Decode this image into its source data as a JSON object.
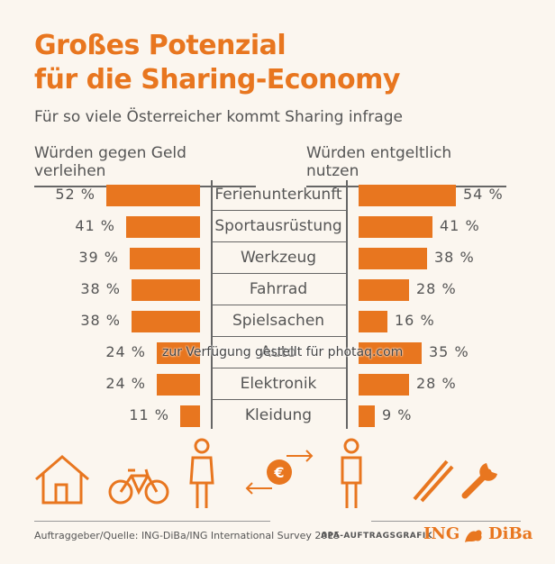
{
  "title_line1": "Großes Potenzial",
  "title_line2": "für die Sharing-Economy",
  "subtitle": "Für so viele Österreicher kommt Sharing infrage",
  "left_header": "Würden gegen Geld verleihen",
  "right_header": "Würden entgeltlich nutzen",
  "watermark": "zur Verfügung gestellt für photaq.com",
  "footer": "Auftraggeber/Quelle: ING-DiBa/ING International Survey 2015",
  "apa": "APA-AUFTRAGSGRAFIK",
  "logo": {
    "left": "ING",
    "right": "DiBa"
  },
  "accent_color": "#e8761f",
  "chart_data": {
    "type": "bar",
    "categories": [
      "Ferienunterkunft",
      "Sportausrüstung",
      "Werkzeug",
      "Fahrrad",
      "Spielsachen",
      "Auto",
      "Elektronik",
      "Kleidung"
    ],
    "series": [
      {
        "name": "Würden gegen Geld verleihen",
        "values": [
          52,
          41,
          39,
          38,
          38,
          24,
          24,
          11
        ],
        "labels": [
          "52 %",
          "41 %",
          "39 %",
          "38 %",
          "38 %",
          "24 %",
          "24 %",
          "11 %"
        ]
      },
      {
        "name": "Würden entgeltlich nutzen",
        "values": [
          54,
          41,
          38,
          28,
          16,
          35,
          28,
          9
        ],
        "labels": [
          "54 %",
          "41 %",
          "38 %",
          "28 %",
          "16 %",
          "35 %",
          "28 %",
          "9 %"
        ]
      }
    ],
    "unit": "%"
  },
  "icons": [
    "house-icon",
    "bicycle-icon",
    "woman-icon",
    "euro-exchange-icon",
    "man-icon",
    "skis-icon",
    "wrench-icon"
  ]
}
